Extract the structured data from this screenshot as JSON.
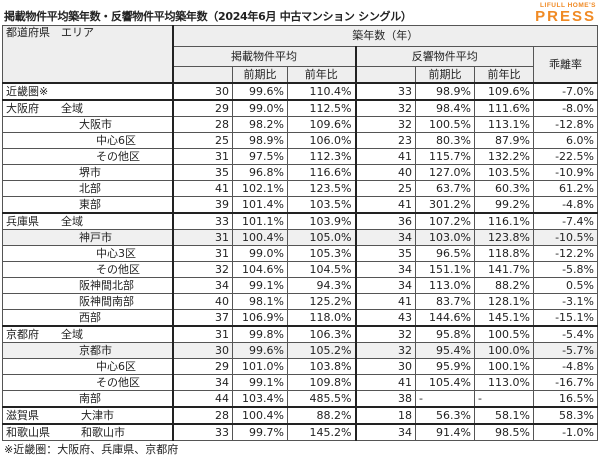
{
  "title": "掲載物件平均築年数・反響物件平均築年数（2024年6月 中古マンション シングル）",
  "logo": {
    "small": "LIFULL HOME'S",
    "big": "PRESS"
  },
  "header": {
    "area": "都道府県　エリア",
    "group": "築年数（年）",
    "listed": "掲載物件平均",
    "response": "反響物件平均",
    "gap": "乖離率",
    "qoq": "前期比",
    "yoy": "前年比"
  },
  "rows": [
    {
      "pref": "近畿圏※",
      "area": "",
      "level": 0,
      "v": [
        "30",
        "99.6%",
        "110.4%",
        "33",
        "98.9%",
        "109.6%",
        "-7.0%"
      ]
    },
    {
      "pref": "大阪府",
      "area": "全域",
      "level": 1,
      "v": [
        "29",
        "99.0%",
        "112.5%",
        "32",
        "98.4%",
        "111.6%",
        "-8.0%"
      ]
    },
    {
      "pref": "",
      "area": "大阪市",
      "level": 2,
      "v": [
        "28",
        "98.2%",
        "109.6%",
        "32",
        "100.5%",
        "113.1%",
        "-12.8%"
      ]
    },
    {
      "pref": "",
      "area": "中心6区",
      "level": 3,
      "v": [
        "25",
        "98.9%",
        "106.0%",
        "23",
        "80.3%",
        "87.9%",
        "6.0%"
      ]
    },
    {
      "pref": "",
      "area": "その他区",
      "level": 3,
      "v": [
        "31",
        "97.5%",
        "112.3%",
        "41",
        "115.7%",
        "132.2%",
        "-22.5%"
      ]
    },
    {
      "pref": "",
      "area": "堺市",
      "level": 2,
      "v": [
        "35",
        "96.8%",
        "116.6%",
        "40",
        "127.0%",
        "103.5%",
        "-10.9%"
      ]
    },
    {
      "pref": "",
      "area": "北部",
      "level": 2,
      "v": [
        "41",
        "102.1%",
        "123.5%",
        "25",
        "63.7%",
        "60.3%",
        "61.2%"
      ]
    },
    {
      "pref": "",
      "area": "東部",
      "level": 2,
      "v": [
        "39",
        "101.4%",
        "103.5%",
        "41",
        "301.2%",
        "99.2%",
        "-4.8%"
      ]
    },
    {
      "pref": "兵庫県",
      "area": "全域",
      "level": 1,
      "v": [
        "33",
        "101.1%",
        "103.9%",
        "36",
        "107.2%",
        "116.1%",
        "-7.4%"
      ]
    },
    {
      "pref": "",
      "area": "神戸市",
      "level": 2,
      "v": [
        "31",
        "100.4%",
        "105.0%",
        "34",
        "103.0%",
        "123.8%",
        "-10.5%"
      ]
    },
    {
      "pref": "",
      "area": "中心3区",
      "level": 3,
      "v": [
        "31",
        "99.0%",
        "105.3%",
        "35",
        "96.5%",
        "118.8%",
        "-12.2%"
      ]
    },
    {
      "pref": "",
      "area": "その他区",
      "level": 3,
      "v": [
        "32",
        "104.6%",
        "104.5%",
        "34",
        "151.1%",
        "141.7%",
        "-5.8%"
      ]
    },
    {
      "pref": "",
      "area": "阪神間北部",
      "level": 2,
      "v": [
        "34",
        "99.1%",
        "94.3%",
        "34",
        "113.0%",
        "88.2%",
        "0.5%"
      ]
    },
    {
      "pref": "",
      "area": "阪神間南部",
      "level": 2,
      "v": [
        "40",
        "98.1%",
        "125.2%",
        "41",
        "83.7%",
        "128.1%",
        "-3.1%"
      ]
    },
    {
      "pref": "",
      "area": "西部",
      "level": 2,
      "v": [
        "37",
        "106.9%",
        "118.0%",
        "43",
        "144.6%",
        "145.1%",
        "-15.1%"
      ]
    },
    {
      "pref": "京都府",
      "area": "全域",
      "level": 1,
      "v": [
        "31",
        "99.8%",
        "106.3%",
        "32",
        "95.8%",
        "100.5%",
        "-5.4%"
      ]
    },
    {
      "pref": "",
      "area": "京都市",
      "level": 2,
      "v": [
        "30",
        "99.6%",
        "105.2%",
        "32",
        "95.4%",
        "100.0%",
        "-5.7%"
      ]
    },
    {
      "pref": "",
      "area": "中心6区",
      "level": 3,
      "v": [
        "29",
        "101.0%",
        "103.8%",
        "30",
        "95.9%",
        "100.1%",
        "-4.8%"
      ]
    },
    {
      "pref": "",
      "area": "その他区",
      "level": 3,
      "v": [
        "34",
        "99.1%",
        "109.8%",
        "41",
        "105.4%",
        "113.0%",
        "-16.7%"
      ]
    },
    {
      "pref": "",
      "area": "南部",
      "level": 2,
      "v": [
        "44",
        "103.4%",
        "485.5%",
        "38",
        "-",
        "-",
        "16.5%"
      ]
    },
    {
      "pref": "滋賀県",
      "area": "大津市",
      "level": 2,
      "v": [
        "28",
        "100.4%",
        "88.2%",
        "18",
        "56.3%",
        "58.1%",
        "58.3%"
      ]
    },
    {
      "pref": "和歌山県",
      "area": "和歌山市",
      "level": 2,
      "v": [
        "33",
        "99.7%",
        "145.2%",
        "34",
        "91.4%",
        "98.5%",
        "-1.0%"
      ]
    }
  ],
  "footnote": "※近畿圏：大阪府、兵庫県、京都府"
}
